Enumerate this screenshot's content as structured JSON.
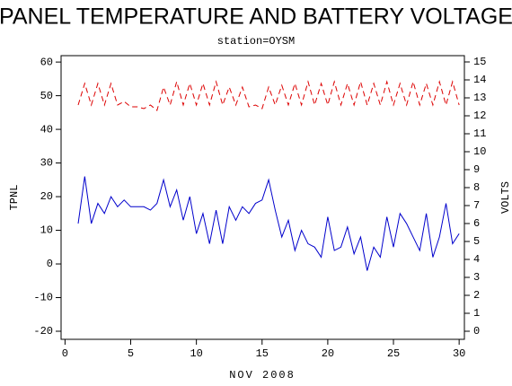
{
  "chart_data": {
    "type": "line",
    "title": "PANEL TEMPERATURE AND BATTERY VOLTAGE",
    "subtitle": "station=OYSM",
    "x_label": "NOV 2008",
    "y_label": "TPNL",
    "y2_label": "VOLTS",
    "x": [
      1,
      1.5,
      2,
      2.5,
      3,
      3.5,
      4,
      4.5,
      5,
      5.5,
      6,
      6.5,
      7,
      7.5,
      8,
      8.5,
      9,
      9.5,
      10,
      10.5,
      11,
      11.5,
      12,
      12.5,
      13,
      13.5,
      14,
      14.5,
      15,
      15.5,
      16,
      16.5,
      17,
      17.5,
      18,
      18.5,
      19,
      19.5,
      20,
      20.5,
      21,
      21.5,
      22,
      22.5,
      23,
      23.5,
      24,
      24.5,
      25,
      25.5,
      26,
      26.5,
      27,
      27.5,
      28,
      28.5,
      29,
      29.5,
      30
    ],
    "series": [
      {
        "color": "#0000cc",
        "axis": "y",
        "values": [
          12,
          26,
          12,
          18,
          15,
          20,
          17,
          19,
          17,
          17,
          17,
          16,
          18,
          25,
          17,
          22,
          13,
          20,
          9,
          15,
          6,
          16,
          6,
          17,
          13,
          17,
          15,
          18,
          19,
          25,
          16,
          8,
          13,
          4,
          10,
          6,
          5,
          2,
          14,
          4,
          5,
          11,
          3,
          8,
          -2,
          5,
          2,
          14,
          5,
          15,
          12,
          8,
          4,
          15,
          2,
          8,
          18,
          6,
          9
        ]
      },
      {
        "color": "#dd0000",
        "axis": "y2",
        "dashed": true,
        "values": [
          12.6,
          13.8,
          12.6,
          13.8,
          12.6,
          13.8,
          12.6,
          12.8,
          12.5,
          12.5,
          12.4,
          12.6,
          12.3,
          13.6,
          12.6,
          13.9,
          12.6,
          13.8,
          12.6,
          13.8,
          12.6,
          13.9,
          12.6,
          13.6,
          12.6,
          13.6,
          12.5,
          12.6,
          12.4,
          13.6,
          12.6,
          13.7,
          12.6,
          13.8,
          12.6,
          13.9,
          12.6,
          13.8,
          12.6,
          13.9,
          12.6,
          13.8,
          12.6,
          13.9,
          12.6,
          13.8,
          12.6,
          13.9,
          12.6,
          13.8,
          12.6,
          13.9,
          12.6,
          13.8,
          12.6,
          13.9,
          12.6,
          13.9,
          12.6
        ]
      }
    ],
    "xlim": [
      -0.3,
      30.4
    ],
    "xticks": [
      0,
      5,
      10,
      15,
      20,
      25,
      30
    ],
    "ylim": [
      -22.4,
      61.9
    ],
    "yticks": [
      -20,
      -10,
      0,
      10,
      20,
      30,
      40,
      50,
      60
    ],
    "y2lim": [
      -0.45,
      15.35
    ],
    "y2ticks": [
      0,
      1,
      2,
      3,
      4,
      5,
      6,
      7,
      8,
      9,
      10,
      11,
      12,
      13,
      14,
      15
    ]
  }
}
